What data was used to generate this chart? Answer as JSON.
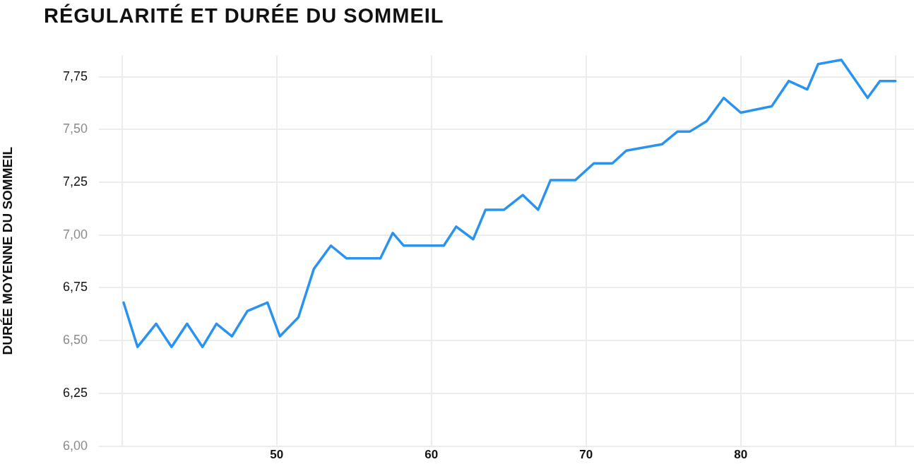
{
  "chart_data": {
    "type": "line",
    "title": "RÉGULARITÉ ET DURÉE DU SOMMEIL",
    "ylabel": "DURÉE MOYENNE DU SOMMEIL",
    "series": [
      {
        "color": "#2a93f0",
        "x": [
          40.1,
          41.0,
          42.2,
          43.2,
          44.2,
          45.2,
          46.1,
          47.1,
          48.1,
          49.4,
          50.2,
          51.4,
          52.4,
          53.5,
          54.5,
          56.7,
          57.5,
          58.2,
          60.8,
          61.6,
          62.7,
          63.5,
          64.7,
          65.9,
          66.9,
          67.7,
          69.3,
          70.5,
          71.7,
          72.6,
          74.9,
          75.9,
          76.7,
          77.8,
          78.9,
          80.0,
          82.0,
          83.1,
          84.3,
          85.0,
          86.5,
          88.2,
          89.0,
          90.0
        ],
        "values": [
          6.68,
          6.47,
          6.58,
          6.47,
          6.58,
          6.47,
          6.58,
          6.52,
          6.64,
          6.68,
          6.52,
          6.61,
          6.84,
          6.95,
          6.89,
          6.89,
          7.01,
          6.95,
          6.95,
          7.04,
          6.98,
          7.12,
          7.12,
          7.19,
          7.12,
          7.26,
          7.26,
          7.34,
          7.34,
          7.4,
          7.43,
          7.49,
          7.49,
          7.54,
          7.65,
          7.58,
          7.61,
          7.73,
          7.69,
          7.81,
          7.83,
          7.65,
          7.73,
          7.73
        ]
      }
    ],
    "xlim": [
      38.5,
      91.2
    ],
    "xticks": [
      {
        "value": 40,
        "label": null
      },
      50,
      60,
      70,
      80,
      {
        "value": 90,
        "label": null
      }
    ],
    "ylim": [
      6,
      7.85
    ],
    "yticks": [
      {
        "value": 6,
        "label": "6,00"
      },
      {
        "value": 6.25,
        "label": "6,25"
      },
      {
        "value": 6.5,
        "label": "6,50"
      },
      {
        "value": 6.75,
        "label": "6,75"
      },
      {
        "value": 7,
        "label": "7,00"
      },
      {
        "value": 7.25,
        "label": "7,25"
      },
      {
        "value": 7.5,
        "label": "7,50"
      },
      {
        "value": 7.75,
        "label": "7,75"
      }
    ],
    "grid": true,
    "legend": false,
    "marker": "none",
    "line_style": "solid"
  }
}
